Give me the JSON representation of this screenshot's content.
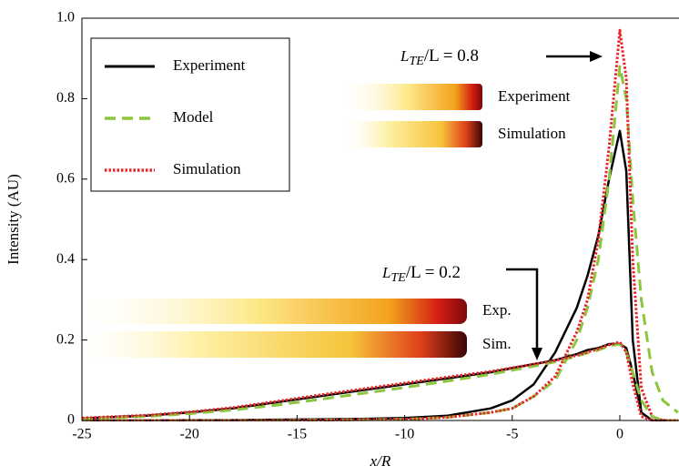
{
  "chart_data": {
    "type": "line",
    "xlabel": "x/R",
    "ylabel": "Intensity (AU)",
    "xlim": [
      -25,
      2.75
    ],
    "ylim": [
      0,
      1
    ],
    "xticks": [
      -25,
      -20,
      -15,
      -10,
      -5,
      0
    ],
    "yticks": [
      0,
      0.2,
      0.4,
      0.6,
      0.8,
      {
        "value": 1,
        "label": "1.0"
      }
    ],
    "legend": "upper left",
    "x": [
      -25,
      -22,
      -20,
      -18,
      -16,
      -14,
      -12,
      -10,
      -8,
      -6,
      -5,
      -4,
      -3,
      -2,
      -1.5,
      -1,
      -0.5,
      0,
      0.3,
      0.6,
      1,
      1.5,
      2,
      2.7
    ],
    "series": [
      {
        "name": "Experiment",
        "color": "#000000",
        "style": "solid",
        "values": [
          0,
          0,
          0.001,
          0.001,
          0.002,
          0.003,
          0.004,
          0.006,
          0.012,
          0.03,
          0.05,
          0.09,
          0.17,
          0.28,
          0.36,
          0.46,
          0.6,
          0.72,
          0.62,
          0.2,
          0.02,
          0,
          0,
          0
        ]
      },
      {
        "name": "Model",
        "color": "#8cc63f",
        "style": "dashed",
        "values": [
          0,
          0,
          0,
          0,
          0,
          0.001,
          0.002,
          0.003,
          0.008,
          0.02,
          0.03,
          0.06,
          0.1,
          0.2,
          0.28,
          0.4,
          0.6,
          0.88,
          0.8,
          0.55,
          0.3,
          0.12,
          0.05,
          0.02
        ]
      },
      {
        "name": "Simulation",
        "color": "#e8262a",
        "style": "dotted",
        "values": [
          0,
          0,
          0,
          0,
          0,
          0.001,
          0.002,
          0.003,
          0.008,
          0.02,
          0.03,
          0.06,
          0.11,
          0.22,
          0.3,
          0.45,
          0.68,
          0.97,
          0.85,
          0.4,
          0.08,
          0.01,
          0,
          0
        ]
      },
      {
        "name": "Experiment",
        "color": "#000000",
        "style": "solid",
        "values": [
          0.005,
          0.012,
          0.02,
          0.03,
          0.045,
          0.06,
          0.075,
          0.09,
          0.105,
          0.12,
          0.13,
          0.14,
          0.15,
          0.165,
          0.175,
          0.18,
          0.19,
          0.19,
          0.18,
          0.12,
          0.02,
          0,
          0,
          0
        ]
      },
      {
        "name": "Model",
        "color": "#8cc63f",
        "style": "dashed",
        "values": [
          0.004,
          0.01,
          0.017,
          0.026,
          0.038,
          0.052,
          0.067,
          0.082,
          0.098,
          0.115,
          0.125,
          0.135,
          0.146,
          0.16,
          0.168,
          0.175,
          0.185,
          0.19,
          0.17,
          0.12,
          0.05,
          0.01,
          0,
          0
        ]
      },
      {
        "name": "Simulation",
        "color": "#e8262a",
        "style": "dotted",
        "values": [
          0.006,
          0.013,
          0.021,
          0.032,
          0.047,
          0.063,
          0.078,
          0.093,
          0.108,
          0.122,
          0.131,
          0.14,
          0.149,
          0.162,
          0.17,
          0.178,
          0.188,
          0.195,
          0.17,
          0.09,
          0.01,
          0,
          0,
          0
        ]
      }
    ],
    "annotations": [
      {
        "main": "L",
        "sub": "TE",
        "rest": "/L = 0.8"
      },
      {
        "main": "L",
        "sub": "TE",
        "rest": "/L = 0.2"
      }
    ],
    "insets": [
      "Experiment",
      "Simulation",
      "Exp.",
      "Sim."
    ]
  }
}
